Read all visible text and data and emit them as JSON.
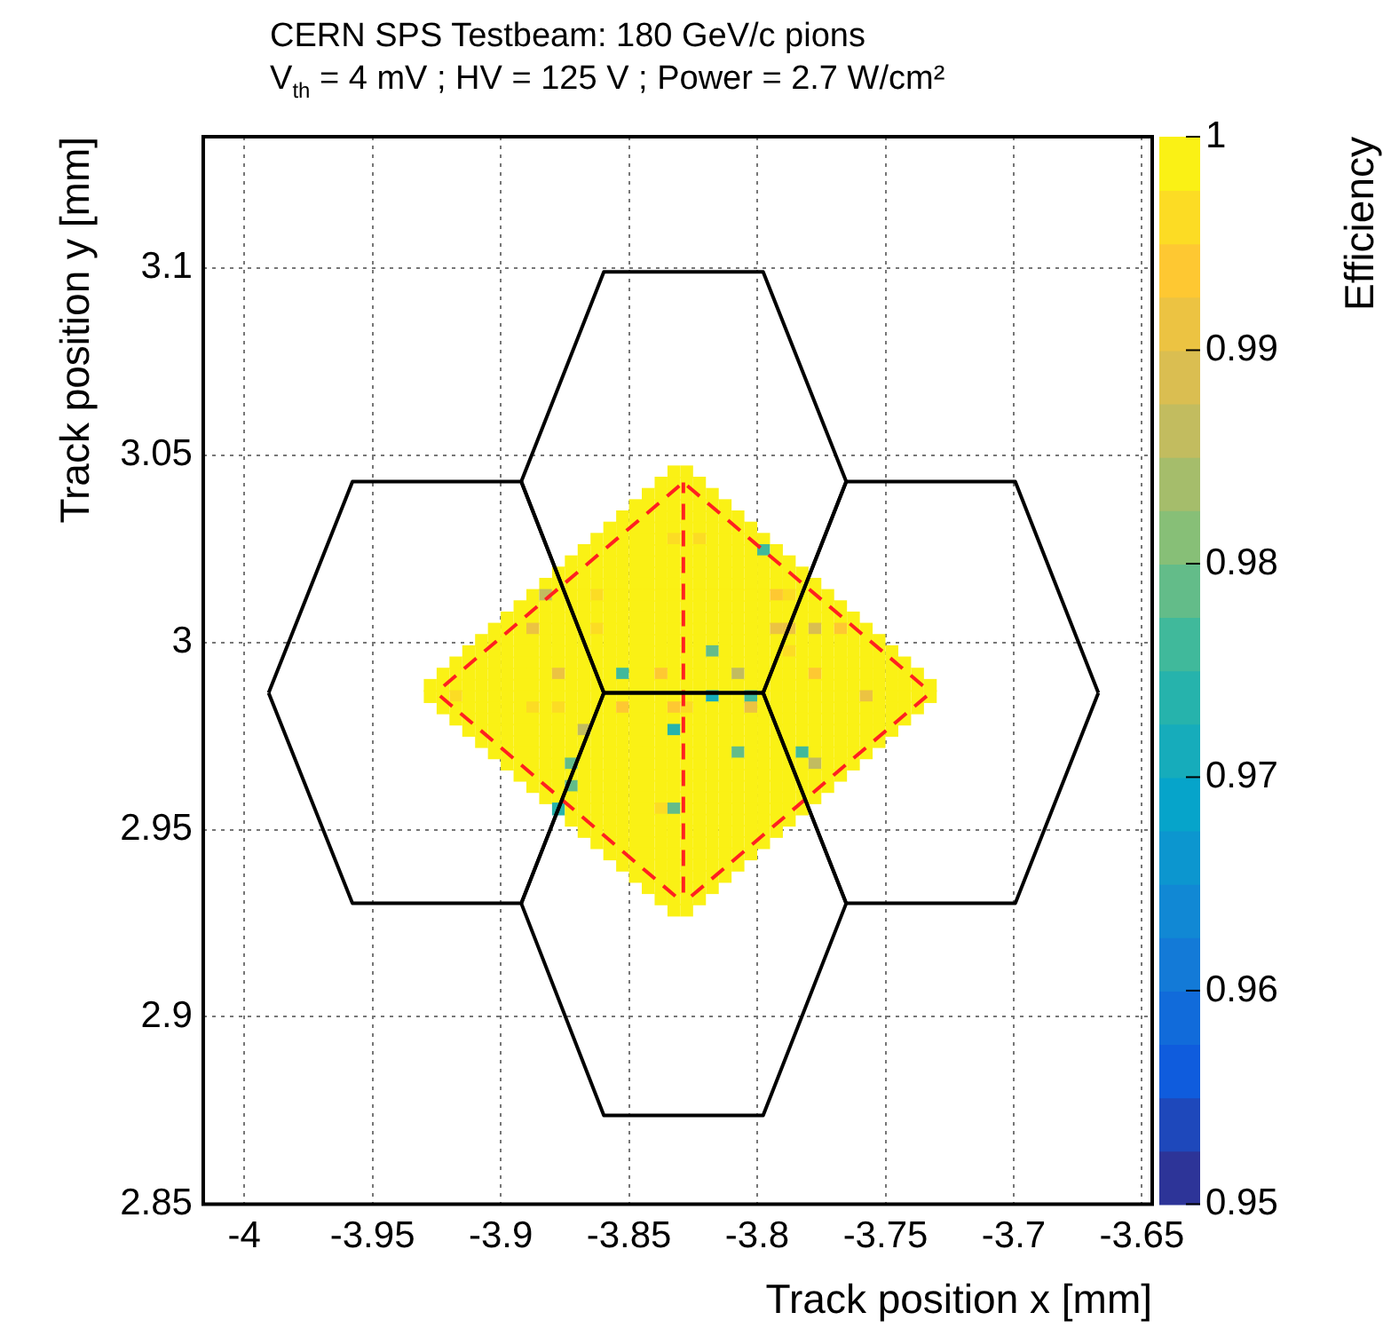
{
  "chart_data": {
    "type": "heatmap",
    "title": "CERN SPS Testbeam: 180 GeV/c pions",
    "subtitle": "V$_{th}$ = 4 mV ; HV = 125 V ; Power = 2.7 W/cm²",
    "xlabel": "Track position x [mm]",
    "ylabel": "Track position y [mm]",
    "clabel": "Efficiency",
    "xlim": [
      -4.016,
      -3.646
    ],
    "ylim": [
      2.85,
      3.135
    ],
    "xticks": [
      -4,
      -3.95,
      -3.9,
      -3.85,
      -3.8,
      -3.75,
      -3.7,
      -3.65
    ],
    "yticks": [
      2.85,
      2.9,
      2.95,
      3,
      3.05,
      3.1
    ],
    "clim": [
      0.95,
      1
    ],
    "cticks": [
      0.95,
      0.96,
      0.97,
      0.98,
      0.99,
      1
    ],
    "grid": true,
    "x": [
      -3.9275,
      -3.9225,
      -3.9175,
      -3.9125,
      -3.9075,
      -3.9025,
      -3.8975,
      -3.8925,
      -3.8875,
      -3.8825,
      -3.8775,
      -3.8725,
      -3.8675,
      -3.8625,
      -3.8575,
      -3.8525,
      -3.8475,
      -3.8425,
      -3.8375,
      -3.8325,
      -3.8275,
      -3.8225,
      -3.8175,
      -3.8125,
      -3.8075,
      -3.8025,
      -3.7975,
      -3.7925,
      -3.7875,
      -3.7825,
      -3.7775,
      -3.7725,
      -3.7675,
      -3.7625,
      -3.7575,
      -3.7525,
      -3.7475,
      -3.7425,
      -3.7375,
      -3.7325
    ],
    "y": [
      3.0455,
      3.0425,
      3.0395,
      3.0365,
      3.0335,
      3.0305,
      3.0275,
      3.0245,
      3.0215,
      3.0185,
      3.0155,
      3.0125,
      3.0095,
      3.0065,
      3.0035,
      3.0005,
      2.9975,
      2.9945,
      2.9915,
      2.9885,
      2.9855,
      2.9825,
      2.9795,
      2.9765,
      2.9735,
      2.9705,
      2.9675,
      2.9645,
      2.9615,
      2.9585,
      2.9555,
      2.9525,
      2.9495,
      2.9465,
      2.9435,
      2.9405,
      2.9375,
      2.9345,
      2.9315,
      2.9285
    ],
    "cells": [
      [
        null,
        null,
        null,
        null,
        null,
        null,
        null,
        null,
        null,
        null,
        null,
        null,
        null,
        null,
        null,
        null,
        null,
        null,
        null,
        1,
        1,
        null,
        null,
        null,
        null,
        null,
        null,
        null,
        null,
        null,
        null,
        null,
        null,
        null,
        null,
        null,
        null,
        null,
        null,
        null
      ],
      [
        null,
        null,
        null,
        null,
        null,
        null,
        null,
        null,
        null,
        null,
        null,
        null,
        null,
        null,
        null,
        null,
        null,
        null,
        1,
        1,
        1,
        1,
        null,
        null,
        null,
        null,
        null,
        null,
        null,
        null,
        null,
        null,
        null,
        null,
        null,
        null,
        null,
        null,
        null,
        null
      ],
      [
        null,
        null,
        null,
        null,
        null,
        null,
        null,
        null,
        null,
        null,
        null,
        null,
        null,
        null,
        null,
        null,
        null,
        1,
        1,
        1,
        1,
        1,
        1,
        null,
        null,
        null,
        null,
        null,
        null,
        null,
        null,
        null,
        null,
        null,
        null,
        null,
        null,
        null,
        null,
        null
      ],
      [
        null,
        null,
        null,
        null,
        null,
        null,
        null,
        null,
        null,
        null,
        null,
        null,
        null,
        null,
        null,
        null,
        1,
        1,
        1,
        1,
        1,
        1,
        1,
        1,
        null,
        null,
        null,
        null,
        null,
        null,
        null,
        null,
        null,
        null,
        null,
        null,
        null,
        null,
        null,
        null
      ],
      [
        null,
        null,
        null,
        null,
        null,
        null,
        null,
        null,
        null,
        null,
        null,
        null,
        null,
        null,
        null,
        1,
        1,
        1,
        1,
        1,
        1,
        1,
        1,
        1,
        1,
        null,
        null,
        null,
        null,
        null,
        null,
        null,
        null,
        null,
        null,
        null,
        null,
        null,
        null,
        null
      ],
      [
        null,
        null,
        null,
        null,
        null,
        null,
        null,
        null,
        null,
        null,
        null,
        null,
        null,
        null,
        1,
        1,
        1,
        1,
        1,
        1,
        1,
        1,
        1,
        1,
        1,
        1,
        null,
        null,
        null,
        null,
        null,
        null,
        null,
        null,
        null,
        null,
        null,
        null,
        null,
        null
      ],
      [
        null,
        null,
        null,
        null,
        null,
        null,
        null,
        null,
        null,
        null,
        null,
        null,
        null,
        1,
        1,
        1,
        1,
        1,
        1,
        0.995,
        1,
        0.995,
        1,
        1,
        1,
        1,
        1,
        null,
        null,
        null,
        null,
        null,
        null,
        null,
        null,
        null,
        null,
        null,
        null,
        null
      ],
      [
        null,
        null,
        null,
        null,
        null,
        null,
        null,
        null,
        null,
        null,
        null,
        null,
        1,
        1,
        1,
        1,
        1,
        1,
        1,
        1,
        1,
        1,
        1,
        1,
        1,
        1,
        0.975,
        1,
        null,
        null,
        null,
        null,
        null,
        null,
        null,
        null,
        null,
        null,
        null,
        null
      ],
      [
        null,
        null,
        null,
        null,
        null,
        null,
        null,
        null,
        null,
        null,
        null,
        1,
        1,
        1,
        1,
        1,
        1,
        1,
        1,
        1,
        1,
        1,
        1,
        1,
        1,
        1,
        1,
        1,
        1,
        null,
        null,
        null,
        null,
        null,
        null,
        null,
        null,
        null,
        null,
        null
      ],
      [
        null,
        null,
        null,
        null,
        null,
        null,
        null,
        null,
        null,
        null,
        1,
        1,
        1,
        1,
        1,
        1,
        1,
        1,
        1,
        1,
        1,
        1,
        1,
        1,
        1,
        1,
        1,
        1,
        1,
        1,
        null,
        null,
        null,
        null,
        null,
        null,
        null,
        null,
        null,
        null
      ],
      [
        null,
        null,
        null,
        null,
        null,
        null,
        null,
        null,
        null,
        1,
        1,
        1,
        1,
        1,
        1,
        1,
        1,
        1,
        1,
        1,
        1,
        1,
        1,
        1,
        1,
        1,
        1,
        1,
        1,
        1,
        1,
        null,
        null,
        null,
        null,
        null,
        null,
        null,
        null,
        null
      ],
      [
        null,
        null,
        null,
        null,
        null,
        null,
        null,
        null,
        1,
        0.985,
        1,
        1,
        1,
        0.995,
        1,
        1,
        1,
        1,
        1,
        1,
        1,
        1,
        1,
        1,
        1,
        1,
        1,
        0.993,
        0.995,
        1,
        1,
        1,
        null,
        null,
        null,
        null,
        null,
        null,
        null,
        null
      ],
      [
        null,
        null,
        null,
        null,
        null,
        null,
        null,
        1,
        1,
        1,
        1,
        1,
        1,
        1,
        1,
        1,
        1,
        1,
        1,
        1,
        1,
        1,
        1,
        1,
        1,
        1,
        1,
        1,
        1,
        1,
        1,
        1,
        1,
        null,
        null,
        null,
        null,
        null,
        null,
        null
      ],
      [
        null,
        null,
        null,
        null,
        null,
        null,
        1,
        1,
        1,
        1,
        1,
        1,
        1,
        1,
        1,
        1,
        1,
        1,
        1,
        1,
        1,
        1,
        1,
        1,
        1,
        1,
        1,
        1,
        1,
        1,
        1,
        1,
        1,
        1,
        null,
        null,
        null,
        null,
        null,
        null
      ],
      [
        null,
        null,
        null,
        null,
        null,
        1,
        1,
        1,
        0.992,
        1,
        1,
        1,
        1,
        0.995,
        1,
        1,
        1,
        1,
        1,
        1,
        1,
        1,
        1,
        1,
        1,
        1,
        1,
        0.991,
        0.992,
        1,
        0.988,
        1,
        0.994,
        1,
        1,
        null,
        null,
        null,
        null,
        null
      ],
      [
        null,
        null,
        null,
        null,
        1,
        1,
        1,
        1,
        1,
        1,
        1,
        1,
        1,
        1,
        1,
        1,
        1,
        1,
        1,
        1,
        1,
        1,
        1,
        1,
        1,
        1,
        1,
        1,
        1,
        1,
        1,
        1,
        1,
        1,
        1,
        1,
        null,
        null,
        null,
        null
      ],
      [
        null,
        null,
        null,
        1,
        1,
        1,
        1,
        1,
        1,
        1,
        1,
        1,
        1,
        1,
        1,
        1,
        1,
        1,
        1,
        1,
        1,
        1,
        0.978,
        1,
        1,
        1,
        1,
        1,
        0.995,
        1,
        1,
        1,
        1,
        1,
        1,
        1,
        1,
        null,
        null,
        null
      ],
      [
        null,
        null,
        1,
        1,
        1,
        1,
        1,
        1,
        1,
        1,
        1,
        1,
        1,
        1,
        1,
        1,
        1,
        1,
        1,
        1,
        1,
        1,
        1,
        1,
        1,
        1,
        1,
        1,
        1,
        1,
        1,
        1,
        1,
        1,
        1,
        1,
        1,
        1,
        null,
        null
      ],
      [
        null,
        1,
        1,
        1,
        1,
        1,
        1,
        1,
        1,
        1,
        0.992,
        1,
        1,
        1,
        1,
        0.976,
        1,
        1,
        0.993,
        1,
        1,
        1,
        1,
        1,
        0.986,
        1,
        1,
        1,
        1,
        1,
        0.993,
        1,
        1,
        1,
        1,
        1,
        1,
        1,
        1,
        null
      ],
      [
        1,
        1,
        1,
        1,
        1,
        1,
        1,
        1,
        1,
        1,
        1,
        1,
        1,
        1,
        1,
        1,
        1,
        1,
        1,
        1,
        1,
        1,
        1,
        1,
        1,
        1,
        1,
        1,
        1,
        1,
        1,
        1,
        1,
        1,
        1,
        1,
        1,
        1,
        1,
        1
      ],
      [
        1,
        1,
        0.995,
        1,
        1,
        1,
        1,
        1,
        1,
        1,
        1,
        1,
        1,
        1,
        1,
        1,
        1,
        1,
        1,
        1,
        1,
        1,
        0.972,
        1,
        1,
        0.977,
        1,
        1,
        1,
        1,
        1,
        1,
        1,
        1,
        0.991,
        1,
        1,
        1,
        1,
        1
      ],
      [
        null,
        1,
        1,
        1,
        1,
        1,
        1,
        1,
        0.995,
        1,
        0.995,
        1,
        1,
        1,
        1,
        0.994,
        1,
        1,
        1,
        0.993,
        0.995,
        1,
        1,
        1,
        1,
        0.992,
        1,
        1,
        1,
        1,
        1,
        1,
        1,
        1,
        1,
        1,
        1,
        1,
        1,
        null
      ],
      [
        null,
        null,
        1,
        1,
        1,
        1,
        1,
        1,
        1,
        1,
        1,
        1,
        1,
        1,
        1,
        1,
        1,
        1,
        1,
        1,
        1,
        1,
        1,
        1,
        1,
        1,
        1,
        1,
        1,
        1,
        1,
        1,
        1,
        1,
        1,
        1,
        1,
        1,
        null,
        null
      ],
      [
        null,
        null,
        null,
        1,
        1,
        1,
        1,
        1,
        1,
        1,
        1,
        1,
        0.986,
        1,
        1,
        1,
        1,
        1,
        1,
        0.973,
        1,
        1,
        1,
        1,
        1,
        1,
        1,
        1,
        1,
        1,
        1,
        1,
        1,
        1,
        1,
        1,
        1,
        null,
        null,
        null
      ],
      [
        null,
        null,
        null,
        null,
        1,
        1,
        1,
        1,
        1,
        1,
        1,
        1,
        1,
        1,
        1,
        1,
        1,
        1,
        1,
        1,
        1,
        1,
        1,
        1,
        1,
        1,
        1,
        1,
        1,
        1,
        1,
        1,
        1,
        1,
        1,
        1,
        null,
        null,
        null,
        null
      ],
      [
        null,
        null,
        null,
        null,
        null,
        1,
        1,
        1,
        1,
        1,
        1,
        1,
        1,
        1,
        1,
        1,
        1,
        1,
        1,
        1,
        1,
        1,
        1,
        1,
        0.978,
        1,
        1,
        1,
        1,
        0.976,
        1,
        1,
        1,
        1,
        1,
        null,
        null,
        null,
        null,
        null
      ],
      [
        null,
        null,
        null,
        null,
        null,
        null,
        1,
        1,
        1,
        1,
        1,
        0.978,
        1,
        1,
        1,
        1,
        1,
        1,
        1,
        1,
        1,
        1,
        1,
        1,
        1,
        1,
        1,
        1,
        1,
        1,
        0.985,
        1,
        1,
        1,
        null,
        null,
        null,
        null,
        null,
        null
      ],
      [
        null,
        null,
        null,
        null,
        null,
        null,
        null,
        1,
        1,
        1,
        1,
        1,
        1,
        1,
        1,
        1,
        1,
        1,
        1,
        1,
        1,
        1,
        1,
        1,
        1,
        1,
        1,
        1,
        1,
        1,
        1,
        1,
        1,
        null,
        null,
        null,
        null,
        null,
        null,
        null
      ],
      [
        null,
        null,
        null,
        null,
        null,
        null,
        null,
        null,
        1,
        1,
        1,
        0.978,
        1,
        1,
        1,
        1,
        1,
        1,
        1,
        1,
        1,
        1,
        1,
        1,
        1,
        1,
        1,
        1,
        1,
        1,
        1,
        1,
        null,
        null,
        null,
        null,
        null,
        null,
        null,
        null
      ],
      [
        null,
        null,
        null,
        null,
        null,
        null,
        null,
        null,
        null,
        1,
        1,
        1,
        1,
        1,
        1,
        1,
        1,
        1,
        1,
        1,
        1,
        1,
        1,
        1,
        1,
        1,
        1,
        1,
        1,
        1,
        1,
        null,
        null,
        null,
        null,
        null,
        null,
        null,
        null,
        null
      ],
      [
        null,
        null,
        null,
        null,
        null,
        null,
        null,
        null,
        null,
        null,
        0.974,
        1,
        1,
        1,
        1,
        1,
        1,
        1,
        0.995,
        0.979,
        1,
        1,
        1,
        1,
        1,
        1,
        1,
        1,
        1,
        1,
        null,
        null,
        null,
        null,
        null,
        null,
        null,
        null,
        null,
        null
      ],
      [
        null,
        null,
        null,
        null,
        null,
        null,
        null,
        null,
        null,
        null,
        null,
        1,
        1,
        1,
        1,
        1,
        1,
        1,
        1,
        1,
        1,
        1,
        1,
        1,
        1,
        1,
        1,
        1,
        1,
        null,
        null,
        null,
        null,
        null,
        null,
        null,
        null,
        null,
        null,
        null
      ],
      [
        null,
        null,
        null,
        null,
        null,
        null,
        null,
        null,
        null,
        null,
        null,
        null,
        1,
        1,
        1,
        1,
        1,
        1,
        1,
        1,
        1,
        1,
        1,
        1,
        1,
        1,
        1,
        1,
        null,
        null,
        null,
        null,
        null,
        null,
        null,
        null,
        null,
        null,
        null,
        null
      ],
      [
        null,
        null,
        null,
        null,
        null,
        null,
        null,
        null,
        null,
        null,
        null,
        null,
        null,
        1,
        1,
        1,
        1,
        1,
        1,
        1,
        1,
        1,
        1,
        1,
        1,
        1,
        1,
        null,
        null,
        null,
        null,
        null,
        null,
        null,
        null,
        null,
        null,
        null,
        null,
        null
      ],
      [
        null,
        null,
        null,
        null,
        null,
        null,
        null,
        null,
        null,
        null,
        null,
        null,
        null,
        null,
        1,
        1,
        1,
        1,
        1,
        1,
        1,
        1,
        1,
        1,
        1,
        1,
        null,
        null,
        null,
        null,
        null,
        null,
        null,
        null,
        null,
        null,
        null,
        null,
        null,
        null
      ],
      [
        null,
        null,
        null,
        null,
        null,
        null,
        null,
        null,
        null,
        null,
        null,
        null,
        null,
        null,
        null,
        1,
        1,
        1,
        1,
        1,
        1,
        1,
        1,
        1,
        1,
        null,
        null,
        null,
        null,
        null,
        null,
        null,
        null,
        null,
        null,
        null,
        null,
        null,
        null,
        null
      ],
      [
        null,
        null,
        null,
        null,
        null,
        null,
        null,
        null,
        null,
        null,
        null,
        null,
        null,
        null,
        null,
        null,
        1,
        1,
        1,
        1,
        1,
        1,
        1,
        1,
        null,
        null,
        null,
        null,
        null,
        null,
        null,
        null,
        null,
        null,
        null,
        null,
        null,
        null,
        null,
        null
      ],
      [
        null,
        null,
        null,
        null,
        null,
        null,
        null,
        null,
        null,
        null,
        null,
        null,
        null,
        null,
        null,
        null,
        null,
        1,
        1,
        1,
        1,
        1,
        1,
        null,
        null,
        null,
        null,
        null,
        null,
        null,
        null,
        null,
        null,
        null,
        null,
        null,
        null,
        null,
        null,
        null
      ],
      [
        null,
        null,
        null,
        null,
        null,
        null,
        null,
        null,
        null,
        null,
        null,
        null,
        null,
        null,
        null,
        null,
        null,
        null,
        1,
        1,
        1,
        1,
        null,
        null,
        null,
        null,
        null,
        null,
        null,
        null,
        null,
        null,
        null,
        null,
        null,
        null,
        null,
        null,
        null,
        null
      ],
      [
        null,
        null,
        null,
        null,
        null,
        null,
        null,
        null,
        null,
        null,
        null,
        null,
        null,
        null,
        null,
        null,
        null,
        null,
        null,
        1,
        1,
        null,
        null,
        null,
        null,
        null,
        null,
        null,
        null,
        null,
        null,
        null,
        null,
        null,
        null,
        null,
        null,
        null,
        null,
        null
      ]
    ],
    "series": [
      {
        "type": "line",
        "color": "#000000",
        "x": [
          -3.892,
          -3.8598,
          -3.7977,
          -3.7653
        ],
        "values": [
          3.0429,
          3.0989,
          3.0989,
          3.0429
        ]
      },
      {
        "type": "line",
        "color": "#000000",
        "x": [
          -3.892,
          -3.8598,
          -3.7977,
          -3.7653
        ],
        "values": [
          3.0429,
          2.9865,
          2.9865,
          3.0429
        ]
      },
      {
        "type": "line",
        "color": "#000000",
        "x": [
          -3.9905,
          -3.9578,
          -3.892,
          -3.8598
        ],
        "values": [
          2.9865,
          3.0429,
          3.0429,
          2.9865
        ]
      },
      {
        "type": "line",
        "color": "#000000",
        "x": [
          -3.9905,
          -3.9578,
          -3.892,
          -3.8598
        ],
        "values": [
          2.9865,
          2.9303,
          2.9303,
          2.9865
        ]
      },
      {
        "type": "line",
        "color": "#000000",
        "x": [
          -3.7977,
          -3.7653,
          -3.6994,
          -3.667
        ],
        "values": [
          2.9865,
          3.0429,
          3.0429,
          2.9865
        ]
      },
      {
        "type": "line",
        "color": "#000000",
        "x": [
          -3.7977,
          -3.7653,
          -3.6994,
          -3.667
        ],
        "values": [
          2.9865,
          2.9303,
          2.9303,
          2.9865
        ]
      },
      {
        "type": "line",
        "color": "#000000",
        "x": [
          -3.892,
          -3.8598,
          -3.7977,
          -3.7653
        ],
        "values": [
          2.9303,
          2.9865,
          2.9865,
          2.9303
        ]
      },
      {
        "type": "line",
        "color": "#000000",
        "x": [
          -3.892,
          -3.8598,
          -3.7977,
          -3.7653
        ],
        "values": [
          2.9303,
          2.8737,
          2.8737,
          2.9303
        ]
      },
      {
        "type": "line",
        "color": "#ff2020",
        "line_style": "dashed",
        "x": [
          -3.9252,
          -3.8288,
          -3.7323
        ],
        "values": [
          2.9866,
          3.0427,
          2.9866
        ]
      },
      {
        "type": "line",
        "color": "#ff2020",
        "line_style": "dashed",
        "x": [
          -3.9252,
          -3.8288
        ],
        "values": [
          2.9866,
          2.9304
        ]
      },
      {
        "type": "line",
        "color": "#ff2020",
        "line_style": "dashed",
        "x": [
          -3.7323,
          -3.8288
        ],
        "values": [
          2.9866,
          2.9304
        ]
      },
      {
        "type": "line",
        "color": "#ff2020",
        "line_style": "dashed",
        "x": [
          -3.8288,
          -3.8288
        ],
        "values": [
          3.0427,
          2.9304
        ]
      }
    ]
  }
}
